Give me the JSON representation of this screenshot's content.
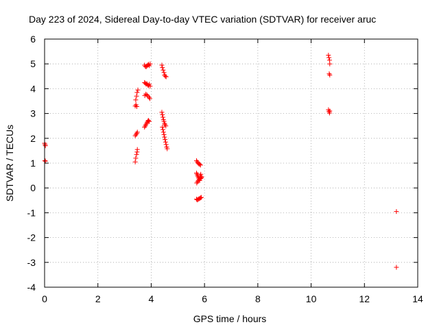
{
  "chart_data": {
    "type": "scatter",
    "title": "Day 223 of 2024, Sidereal Day-to-day VTEC variation (SDTVAR) for receiver aruc",
    "xlabel": "GPS time / hours",
    "ylabel": "SDTVAR / TECUs",
    "xlim": [
      0,
      14
    ],
    "ylim": [
      -4,
      6
    ],
    "xticks": [
      0,
      2,
      4,
      6,
      8,
      10,
      12,
      14
    ],
    "yticks": [
      -4,
      -3,
      -2,
      -1,
      0,
      1,
      2,
      3,
      4,
      5,
      6
    ],
    "grid": true,
    "marker": "+",
    "color": "#ff0000",
    "series": [
      {
        "name": "SDTVAR",
        "points": [
          [
            0.0,
            1.8
          ],
          [
            0.02,
            1.75
          ],
          [
            0.03,
            1.7
          ],
          [
            0.01,
            1.1
          ],
          [
            0.03,
            1.08
          ],
          [
            3.4,
            1.05
          ],
          [
            3.42,
            1.2
          ],
          [
            3.45,
            1.35
          ],
          [
            3.47,
            1.45
          ],
          [
            3.48,
            1.55
          ],
          [
            3.4,
            2.1
          ],
          [
            3.43,
            2.15
          ],
          [
            3.46,
            2.2
          ],
          [
            3.48,
            2.25
          ],
          [
            3.4,
            3.3
          ],
          [
            3.43,
            3.35
          ],
          [
            3.46,
            3.28
          ],
          [
            3.42,
            3.55
          ],
          [
            3.45,
            3.7
          ],
          [
            3.47,
            3.85
          ],
          [
            3.5,
            3.95
          ],
          [
            3.75,
            2.45
          ],
          [
            3.78,
            2.5
          ],
          [
            3.8,
            2.55
          ],
          [
            3.83,
            2.6
          ],
          [
            3.85,
            2.65
          ],
          [
            3.88,
            2.7
          ],
          [
            3.9,
            2.72
          ],
          [
            3.93,
            2.68
          ],
          [
            3.76,
            3.72
          ],
          [
            3.8,
            3.78
          ],
          [
            3.84,
            3.75
          ],
          [
            3.88,
            3.7
          ],
          [
            3.92,
            3.65
          ],
          [
            3.95,
            3.6
          ],
          [
            3.75,
            4.25
          ],
          [
            3.78,
            4.22
          ],
          [
            3.81,
            4.18
          ],
          [
            3.84,
            4.2
          ],
          [
            3.87,
            4.15
          ],
          [
            3.9,
            4.12
          ],
          [
            3.93,
            4.18
          ],
          [
            3.96,
            4.1
          ],
          [
            3.75,
            4.95
          ],
          [
            3.78,
            4.9
          ],
          [
            3.81,
            4.88
          ],
          [
            3.84,
            4.92
          ],
          [
            3.87,
            4.95
          ],
          [
            3.9,
            4.98
          ],
          [
            3.93,
            4.93
          ],
          [
            3.96,
            5.0
          ],
          [
            4.4,
            4.95
          ],
          [
            4.42,
            4.85
          ],
          [
            4.45,
            4.75
          ],
          [
            4.48,
            4.65
          ],
          [
            4.5,
            4.55
          ],
          [
            4.53,
            4.5
          ],
          [
            4.56,
            4.48
          ],
          [
            4.4,
            3.05
          ],
          [
            4.42,
            2.95
          ],
          [
            4.44,
            2.85
          ],
          [
            4.46,
            2.75
          ],
          [
            4.48,
            2.68
          ],
          [
            4.5,
            2.6
          ],
          [
            4.52,
            2.55
          ],
          [
            4.55,
            2.5
          ],
          [
            4.42,
            2.45
          ],
          [
            4.44,
            2.35
          ],
          [
            4.46,
            2.25
          ],
          [
            4.48,
            2.15
          ],
          [
            4.5,
            2.05
          ],
          [
            4.52,
            1.95
          ],
          [
            4.54,
            1.85
          ],
          [
            4.56,
            1.75
          ],
          [
            4.58,
            1.65
          ],
          [
            4.6,
            1.58
          ],
          [
            5.7,
            1.1
          ],
          [
            5.73,
            1.05
          ],
          [
            5.76,
            1.0
          ],
          [
            5.79,
            0.97
          ],
          [
            5.82,
            0.95
          ],
          [
            5.85,
            0.92
          ],
          [
            5.7,
            0.6
          ],
          [
            5.72,
            0.55
          ],
          [
            5.74,
            0.5
          ],
          [
            5.76,
            0.45
          ],
          [
            5.78,
            0.4
          ],
          [
            5.8,
            0.35
          ],
          [
            5.82,
            0.3
          ],
          [
            5.84,
            0.5
          ],
          [
            5.86,
            0.55
          ],
          [
            5.88,
            0.45
          ],
          [
            5.71,
            0.2
          ],
          [
            5.74,
            0.25
          ],
          [
            5.77,
            0.3
          ],
          [
            5.8,
            0.35
          ],
          [
            5.83,
            0.4
          ],
          [
            5.86,
            0.38
          ],
          [
            5.89,
            0.42
          ],
          [
            5.7,
            -0.45
          ],
          [
            5.73,
            -0.48
          ],
          [
            5.76,
            -0.46
          ],
          [
            5.79,
            -0.44
          ],
          [
            5.82,
            -0.42
          ],
          [
            5.85,
            -0.4
          ],
          [
            5.88,
            -0.38
          ],
          [
            10.65,
            5.35
          ],
          [
            10.67,
            5.25
          ],
          [
            10.69,
            5.15
          ],
          [
            10.7,
            5.0
          ],
          [
            10.68,
            4.6
          ],
          [
            10.7,
            4.55
          ],
          [
            10.65,
            3.15
          ],
          [
            10.67,
            3.08
          ],
          [
            10.69,
            3.02
          ],
          [
            10.7,
            3.1
          ],
          [
            13.2,
            -0.95
          ],
          [
            13.2,
            -3.2
          ]
        ]
      }
    ]
  }
}
